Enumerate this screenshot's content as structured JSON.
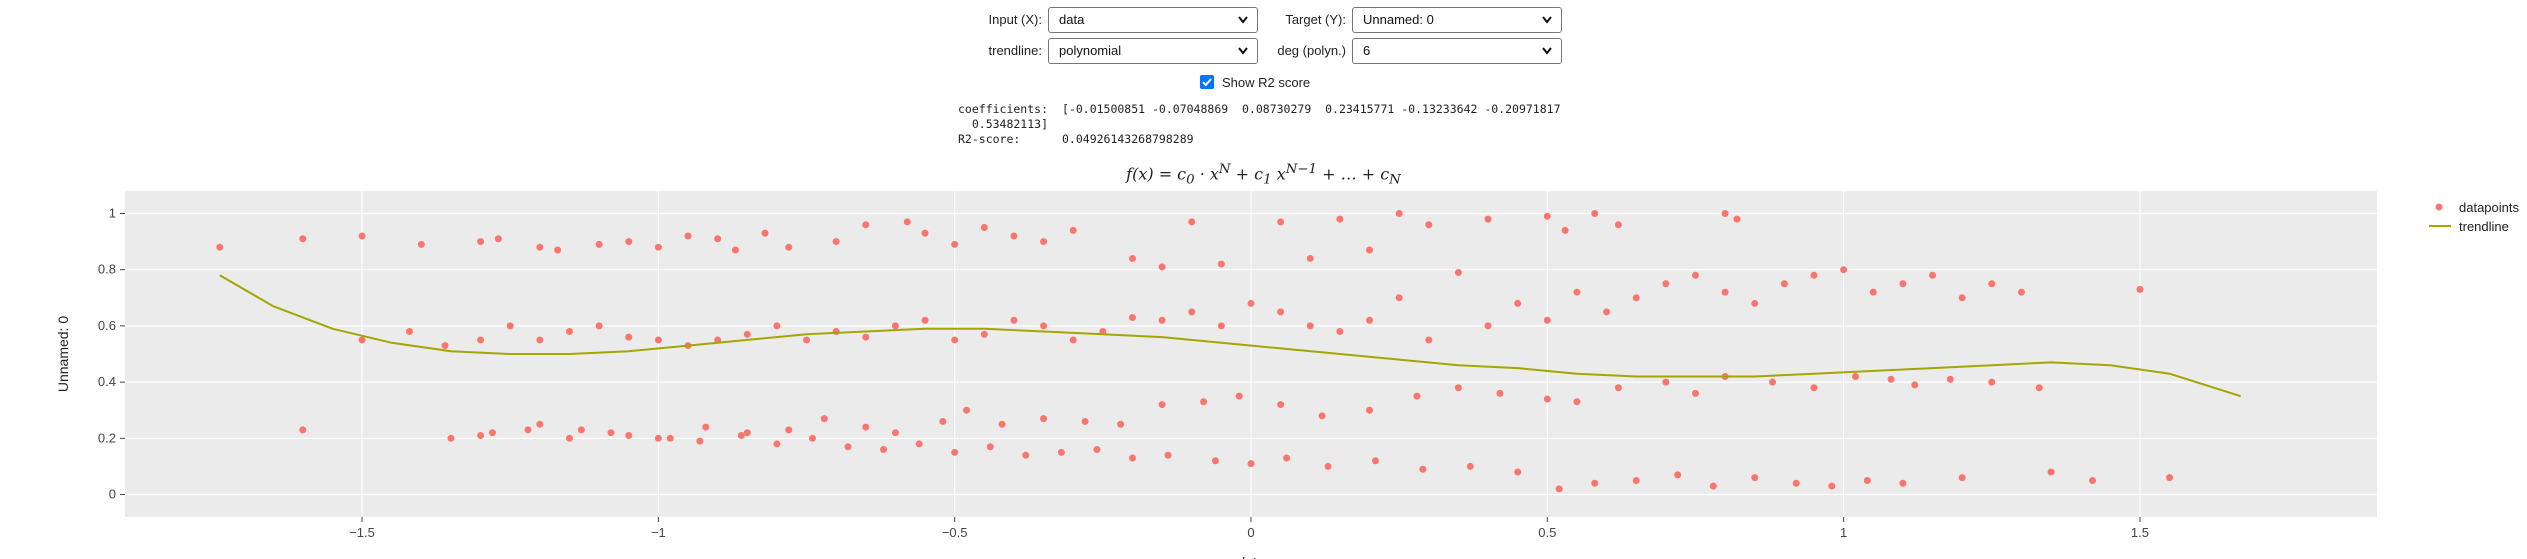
{
  "controls": {
    "input_label": "Input (X):",
    "input_value": "data",
    "target_label": "Target (Y):",
    "target_value": "Unnamed: 0",
    "trendline_label": "trendline:",
    "trendline_value": "polynomial",
    "deg_label": "deg (polyn.)",
    "deg_value": "6",
    "show_r2_label": "Show R2 score",
    "show_r2_checked": true
  },
  "results": {
    "coefficients_label": "coefficients:",
    "coefficients_line1": "[-0.01500851 -0.07048869  0.08730279  0.23415771 -0.13233642 -0.20971817",
    "coefficients_line2": "  0.53482113]",
    "r2_label": "R2-score:",
    "r2_value": "0.04926143268798289"
  },
  "formula": "f(x) = c0 · x^N + c1 x^(N-1) + … + cN",
  "chart_data": {
    "type": "scatter",
    "xlabel": "data",
    "ylabel": "Unnamed: 0",
    "xlim": [
      -1.9,
      1.9
    ],
    "ylim": [
      -0.08,
      1.08
    ],
    "x_ticks": [
      -1.5,
      -1,
      -0.5,
      0,
      0.5,
      1,
      1.5
    ],
    "x_tick_labels": [
      "−1.5",
      "−1",
      "−0.5",
      "0",
      "0.5",
      "1",
      "1.5"
    ],
    "y_ticks": [
      0,
      0.2,
      0.4,
      0.6,
      0.8,
      1
    ],
    "y_tick_labels": [
      "0",
      "0.2",
      "0.4",
      "0.6",
      "0.8",
      "1"
    ],
    "grid": true,
    "legend_placement": "top-right",
    "point_color": "#f8766d",
    "line_color": "#a3a500",
    "background_color": "#ebebeb",
    "series": [
      {
        "name": "datapoints",
        "x": [
          -1.74,
          -1.6,
          -1.5,
          -1.4,
          -1.3,
          -1.27,
          -1.2,
          -1.17,
          -1.1,
          -1.05,
          -1.0,
          -0.95,
          -0.9,
          -0.87,
          -0.82,
          -0.78,
          -0.7,
          -0.65,
          -0.58,
          -0.55,
          -0.5,
          -0.45,
          -0.4,
          -0.35,
          -0.3,
          -0.2,
          -0.15,
          -0.1,
          -0.05,
          0.05,
          0.1,
          0.15,
          0.2,
          0.25,
          0.3,
          0.35,
          0.4,
          0.5,
          0.53,
          0.58,
          0.62,
          0.8,
          0.82,
          -1.6,
          -1.5,
          -1.42,
          -1.36,
          -1.3,
          -1.25,
          -1.2,
          -1.15,
          -1.1,
          -1.05,
          -1.0,
          -0.95,
          -0.9,
          -0.85,
          -0.8,
          -0.75,
          -0.7,
          -0.65,
          -0.6,
          -0.55,
          -0.5,
          -0.45,
          -0.4,
          -0.35,
          -0.3,
          -0.25,
          -0.2,
          -0.15,
          -0.1,
          -0.05,
          0.0,
          0.05,
          0.1,
          0.15,
          0.2,
          0.25,
          0.3,
          0.4,
          0.45,
          0.5,
          0.55,
          0.6,
          0.65,
          0.7,
          0.75,
          0.8,
          0.85,
          0.9,
          0.95,
          1.0,
          1.05,
          1.1,
          1.15,
          1.2,
          1.25,
          1.3,
          1.5,
          -1.35,
          -1.28,
          -1.2,
          -1.13,
          -1.05,
          -0.98,
          -0.92,
          -0.85,
          -0.78,
          -0.72,
          -0.65,
          -0.6,
          -0.52,
          -0.48,
          -0.42,
          -0.35,
          -0.28,
          -0.22,
          -0.15,
          -0.08,
          -0.02,
          0.05,
          0.12,
          0.2,
          0.28,
          0.35,
          0.42,
          0.5,
          0.55,
          0.62,
          0.7,
          0.75,
          0.8,
          0.88,
          0.95,
          1.02,
          1.08,
          1.12,
          1.18,
          1.25,
          1.33,
          -1.3,
          -1.22,
          -1.15,
          -1.08,
          -1.0,
          -0.93,
          -0.86,
          -0.8,
          -0.74,
          -0.68,
          -0.62,
          -0.56,
          -0.5,
          -0.44,
          -0.38,
          -0.32,
          -0.26,
          -0.2,
          -0.14,
          -0.06,
          0.0,
          0.06,
          0.13,
          0.21,
          0.29,
          0.37,
          0.45,
          0.52,
          0.58,
          0.65,
          0.72,
          0.78,
          0.85,
          0.92,
          0.98,
          1.04,
          1.1,
          1.2,
          1.35,
          1.42,
          1.55
        ],
        "y": [
          0.88,
          0.91,
          0.92,
          0.89,
          0.9,
          0.91,
          0.88,
          0.87,
          0.89,
          0.9,
          0.88,
          0.92,
          0.91,
          0.87,
          0.93,
          0.88,
          0.9,
          0.96,
          0.97,
          0.93,
          0.89,
          0.95,
          0.92,
          0.9,
          0.94,
          0.84,
          0.81,
          0.97,
          0.82,
          0.97,
          0.84,
          0.98,
          0.87,
          1.0,
          0.96,
          0.79,
          0.98,
          0.99,
          0.94,
          1.0,
          0.96,
          1.0,
          0.98,
          0.23,
          0.55,
          0.58,
          0.53,
          0.55,
          0.6,
          0.55,
          0.58,
          0.6,
          0.56,
          0.55,
          0.53,
          0.55,
          0.57,
          0.6,
          0.55,
          0.58,
          0.56,
          0.6,
          0.62,
          0.55,
          0.57,
          0.62,
          0.6,
          0.55,
          0.58,
          0.63,
          0.62,
          0.65,
          0.6,
          0.68,
          0.65,
          0.6,
          0.58,
          0.62,
          0.7,
          0.55,
          0.6,
          0.68,
          0.62,
          0.72,
          0.65,
          0.7,
          0.75,
          0.78,
          0.72,
          0.68,
          0.75,
          0.78,
          0.8,
          0.72,
          0.75,
          0.78,
          0.7,
          0.75,
          0.72,
          0.73,
          0.2,
          0.22,
          0.25,
          0.23,
          0.21,
          0.2,
          0.24,
          0.22,
          0.23,
          0.27,
          0.24,
          0.22,
          0.26,
          0.3,
          0.25,
          0.27,
          0.26,
          0.25,
          0.32,
          0.33,
          0.35,
          0.32,
          0.28,
          0.3,
          0.35,
          0.38,
          0.36,
          0.34,
          0.33,
          0.38,
          0.4,
          0.36,
          0.42,
          0.4,
          0.38,
          0.42,
          0.41,
          0.39,
          0.41,
          0.4,
          0.38,
          0.21,
          0.23,
          0.2,
          0.22,
          0.2,
          0.19,
          0.21,
          0.18,
          0.2,
          0.17,
          0.16,
          0.18,
          0.15,
          0.17,
          0.14,
          0.15,
          0.16,
          0.13,
          0.14,
          0.12,
          0.11,
          0.13,
          0.1,
          0.12,
          0.09,
          0.1,
          0.08,
          0.02,
          0.04,
          0.05,
          0.07,
          0.03,
          0.06,
          0.04,
          0.03,
          0.05,
          0.04,
          0.06,
          0.08,
          0.05,
          0.06
        ]
      },
      {
        "name": "trendline",
        "x": [
          -1.74,
          -1.65,
          -1.55,
          -1.45,
          -1.35,
          -1.25,
          -1.15,
          -1.05,
          -0.95,
          -0.85,
          -0.75,
          -0.65,
          -0.55,
          -0.45,
          -0.35,
          -0.25,
          -0.15,
          -0.05,
          0.05,
          0.15,
          0.25,
          0.35,
          0.45,
          0.55,
          0.65,
          0.75,
          0.85,
          0.95,
          1.05,
          1.15,
          1.25,
          1.35,
          1.45,
          1.55,
          1.67
        ],
        "y": [
          0.78,
          0.67,
          0.59,
          0.54,
          0.51,
          0.5,
          0.5,
          0.51,
          0.53,
          0.55,
          0.57,
          0.58,
          0.59,
          0.59,
          0.58,
          0.57,
          0.56,
          0.54,
          0.52,
          0.5,
          0.48,
          0.46,
          0.45,
          0.43,
          0.42,
          0.42,
          0.42,
          0.43,
          0.44,
          0.45,
          0.46,
          0.47,
          0.46,
          0.43,
          0.35
        ]
      }
    ]
  }
}
